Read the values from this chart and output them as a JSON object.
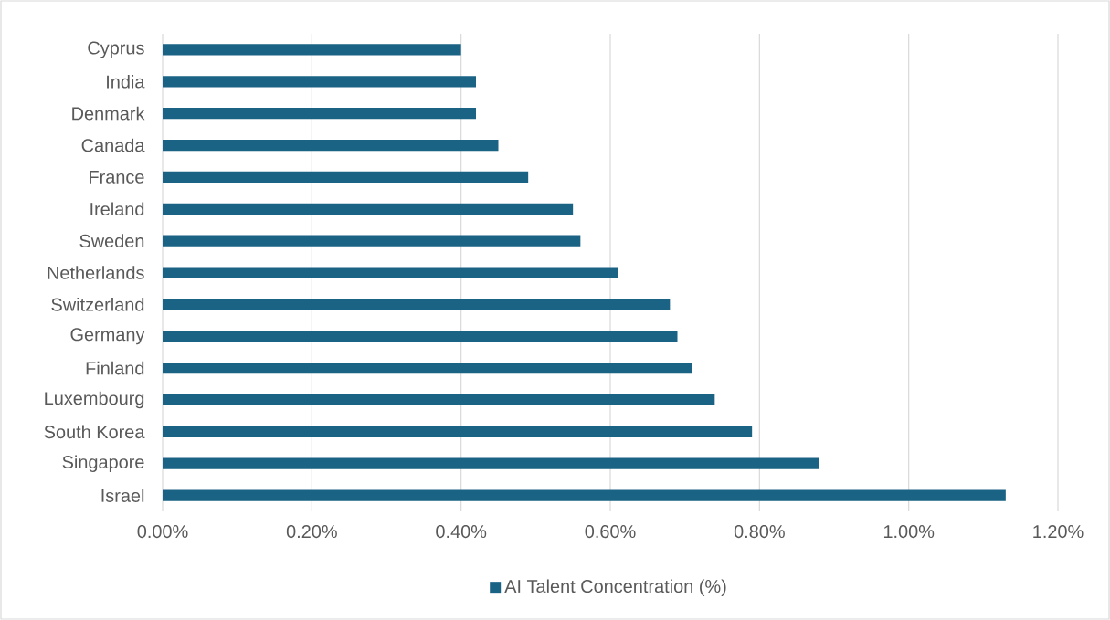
{
  "chart_data": {
    "type": "bar",
    "orientation": "horizontal",
    "categories": [
      "Cyprus",
      "India",
      "Denmark",
      "Canada",
      "France",
      "Ireland",
      "Sweden",
      "Netherlands",
      "Switzerland",
      "Germany",
      "Finland",
      "Luxembourg",
      "South Korea",
      "Singapore",
      "Israel"
    ],
    "series": [
      {
        "name": "AI Talent Concentration (%)",
        "color": "#1a6385",
        "values": [
          0.4,
          0.42,
          0.42,
          0.45,
          0.49,
          0.55,
          0.56,
          0.61,
          0.68,
          0.69,
          0.71,
          0.74,
          0.79,
          0.88,
          1.13
        ]
      }
    ],
    "xlim": [
      0,
      1.2
    ],
    "xticks": [
      {
        "value": 0,
        "label": "0.00%"
      },
      {
        "value": 0.2,
        "label": "0.20%"
      },
      {
        "value": 0.4,
        "label": "0.40%"
      },
      {
        "value": 0.6,
        "label": "0.60%"
      },
      {
        "value": 0.8,
        "label": "0.80%"
      },
      {
        "value": 1.0,
        "label": "1.00%"
      },
      {
        "value": 1.2,
        "label": "1.20%"
      }
    ],
    "grid": "x",
    "legend": "bottom"
  }
}
